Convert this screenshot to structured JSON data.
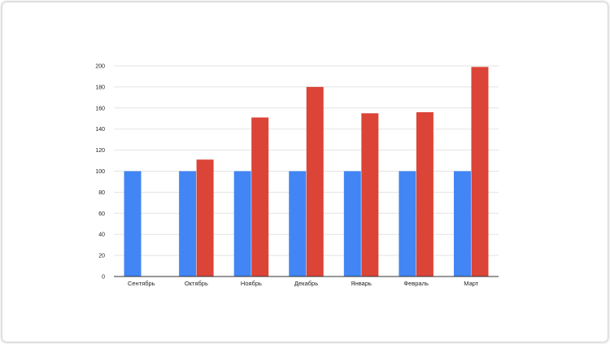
{
  "chart_data": {
    "type": "bar",
    "title": "",
    "xlabel": "",
    "ylabel": "",
    "categories": [
      "Сентябрь",
      "Октябрь",
      "Ноябрь",
      "Декабрь",
      "Январь",
      "Февраль",
      "Март"
    ],
    "series": [
      {
        "color": "#4285f4",
        "values": [
          100,
          100,
          100,
          100,
          100,
          100,
          100
        ]
      },
      {
        "color": "#db4437",
        "values": [
          0,
          111,
          151,
          180,
          155,
          156,
          199
        ]
      }
    ],
    "ylim": [
      0,
      200
    ],
    "yticks": [
      "0",
      "20",
      "40",
      "60",
      "80",
      "100",
      "120",
      "140",
      "160",
      "180",
      "200"
    ],
    "grid": true,
    "legend": "none"
  }
}
